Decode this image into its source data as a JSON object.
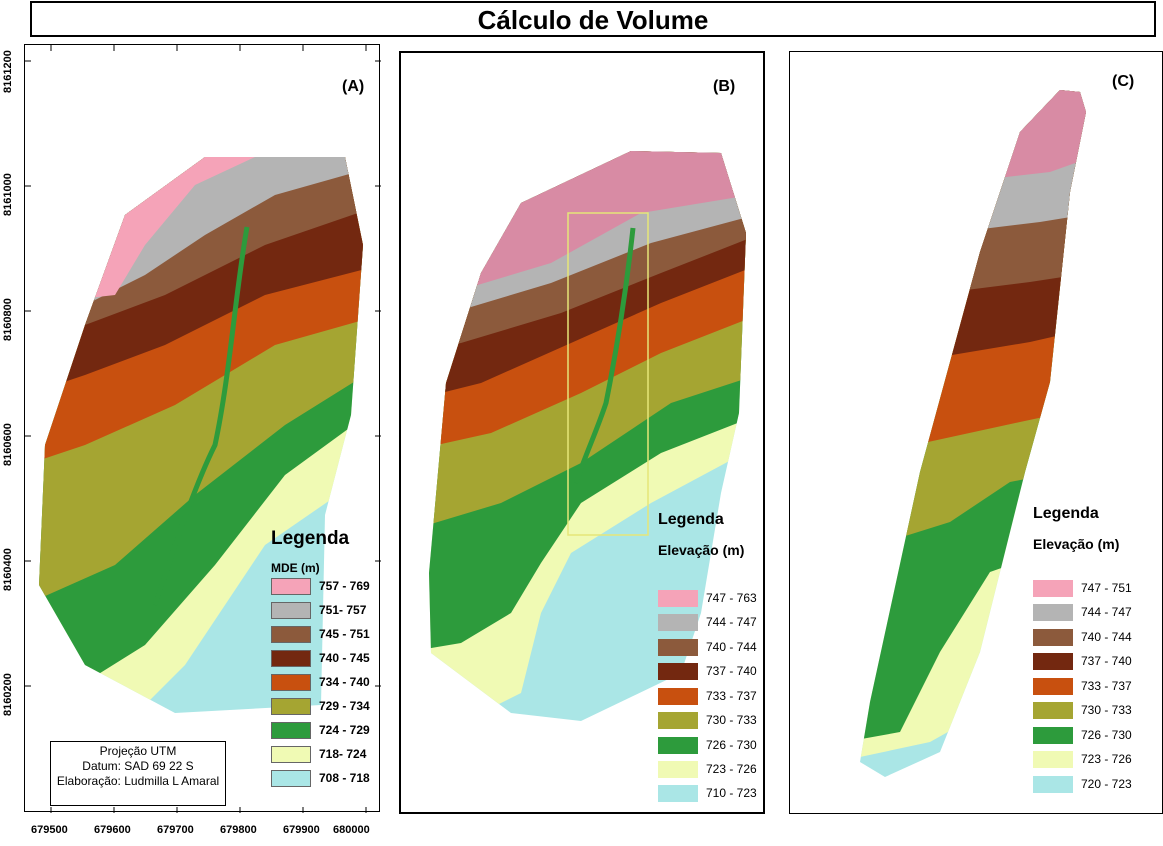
{
  "title": "Cálculo de Volume",
  "panels": {
    "a": {
      "label": "(A)",
      "legend_title": "Legenda",
      "legend_subtitle": "MDE (m)",
      "legend": [
        {
          "label": "757 - 769",
          "color": "#f5a3b8"
        },
        {
          "label": "751- 757",
          "color": "#b4b4b4"
        },
        {
          "label": "745 - 751",
          "color": "#8c5a3c"
        },
        {
          "label": "740 - 745",
          "color": "#732810"
        },
        {
          "label": "734 - 740",
          "color": "#c8500f"
        },
        {
          "label": "729 - 734",
          "color": "#a5a532"
        },
        {
          "label": "724 - 729",
          "color": "#2d9b3c"
        },
        {
          "label": "718- 724",
          "color": "#f0fab4"
        },
        {
          "label": "708 - 718",
          "color": "#aae6e6"
        }
      ]
    },
    "b": {
      "label": "(B)",
      "legend_title": "Legenda",
      "legend_subtitle": "Elevação (m)",
      "legend": [
        {
          "label": "747 - 763",
          "color": "#f5a3b8"
        },
        {
          "label": "744 - 747",
          "color": "#b4b4b4"
        },
        {
          "label": "740 - 744",
          "color": "#8c5a3c"
        },
        {
          "label": "737 - 740",
          "color": "#732810"
        },
        {
          "label": "733 - 737",
          "color": "#c8500f"
        },
        {
          "label": "730 - 733",
          "color": "#a5a532"
        },
        {
          "label": "726 - 730",
          "color": "#2d9b3c"
        },
        {
          "label": "723 - 726",
          "color": "#f0fab4"
        },
        {
          "label": "710 - 723",
          "color": "#aae6e6"
        }
      ]
    },
    "c": {
      "label": "(C)",
      "legend_title": "Legenda",
      "legend_subtitle": "Elevação (m)",
      "legend": [
        {
          "label": "747 - 751",
          "color": "#f5a3b8"
        },
        {
          "label": "744 - 747",
          "color": "#b4b4b4"
        },
        {
          "label": "740 - 744",
          "color": "#8c5a3c"
        },
        {
          "label": "737 - 740",
          "color": "#732810"
        },
        {
          "label": "733 - 737",
          "color": "#c8500f"
        },
        {
          "label": "730 - 733",
          "color": "#a5a532"
        },
        {
          "label": "726 - 730",
          "color": "#2d9b3c"
        },
        {
          "label": "723 - 726",
          "color": "#f0fab4"
        },
        {
          "label": "720 - 723",
          "color": "#aae6e6"
        }
      ]
    }
  },
  "axes": {
    "y_ticks": [
      "8161200",
      "8161000",
      "8160800",
      "8160600",
      "8160400",
      "8160200"
    ],
    "x_ticks": [
      "679500",
      "679600",
      "679700",
      "679800",
      "679900",
      "680000"
    ]
  },
  "info": {
    "line1": "Projeção UTM",
    "line2": "Datum: SAD 69 22 S",
    "line3": "Elaboração: Ludmilla L Amaral"
  }
}
